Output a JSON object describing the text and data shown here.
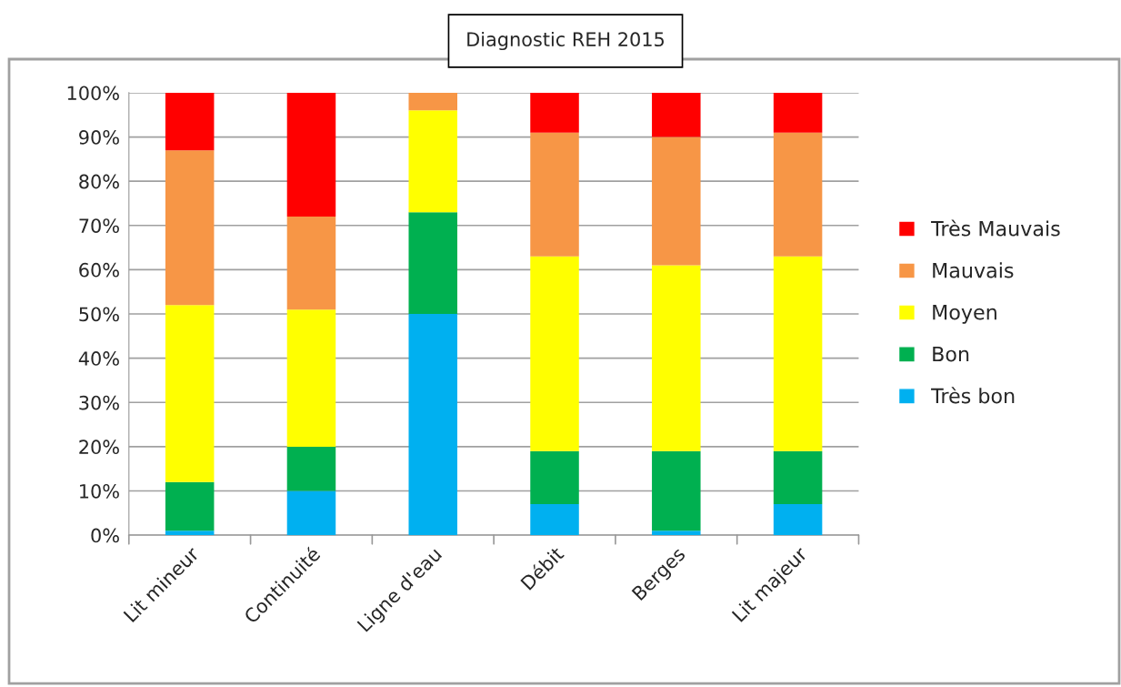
{
  "chart_data": {
    "type": "bar",
    "title": "Diagnostic REH 2015",
    "stacked": true,
    "categories": [
      "Lit mineur",
      "Continuité",
      "Ligne d'eau",
      "Débit",
      "Berges",
      "Lit majeur"
    ],
    "series": [
      {
        "name": "Très bon",
        "color": "#00b0f0",
        "values": [
          1,
          10,
          50,
          7,
          1,
          7
        ]
      },
      {
        "name": "Bon",
        "color": "#00b050",
        "values": [
          11,
          10,
          23,
          12,
          18,
          12
        ]
      },
      {
        "name": "Moyen",
        "color": "#ffff00",
        "values": [
          40,
          31,
          23,
          44,
          42,
          44
        ]
      },
      {
        "name": "Mauvais",
        "color": "#f79646",
        "values": [
          35,
          21,
          4,
          28,
          29,
          28
        ]
      },
      {
        "name": "Très Mauvais",
        "color": "#ff0000",
        "values": [
          13,
          28,
          0,
          9,
          10,
          9
        ]
      }
    ],
    "ylim": [
      0,
      100
    ],
    "yticks": [
      {
        "value": 0,
        "label": "0%"
      },
      {
        "value": 10,
        "label": "10%"
      },
      {
        "value": 20,
        "label": "20%"
      },
      {
        "value": 30,
        "label": "30%"
      },
      {
        "value": 40,
        "label": "40%"
      },
      {
        "value": 50,
        "label": "50%"
      },
      {
        "value": 60,
        "label": "60%"
      },
      {
        "value": 70,
        "label": "70%"
      },
      {
        "value": 80,
        "label": "80%"
      },
      {
        "value": 90,
        "label": "90%"
      },
      {
        "value": 100,
        "label": "100%"
      }
    ],
    "grid": "y",
    "legend": "right"
  }
}
